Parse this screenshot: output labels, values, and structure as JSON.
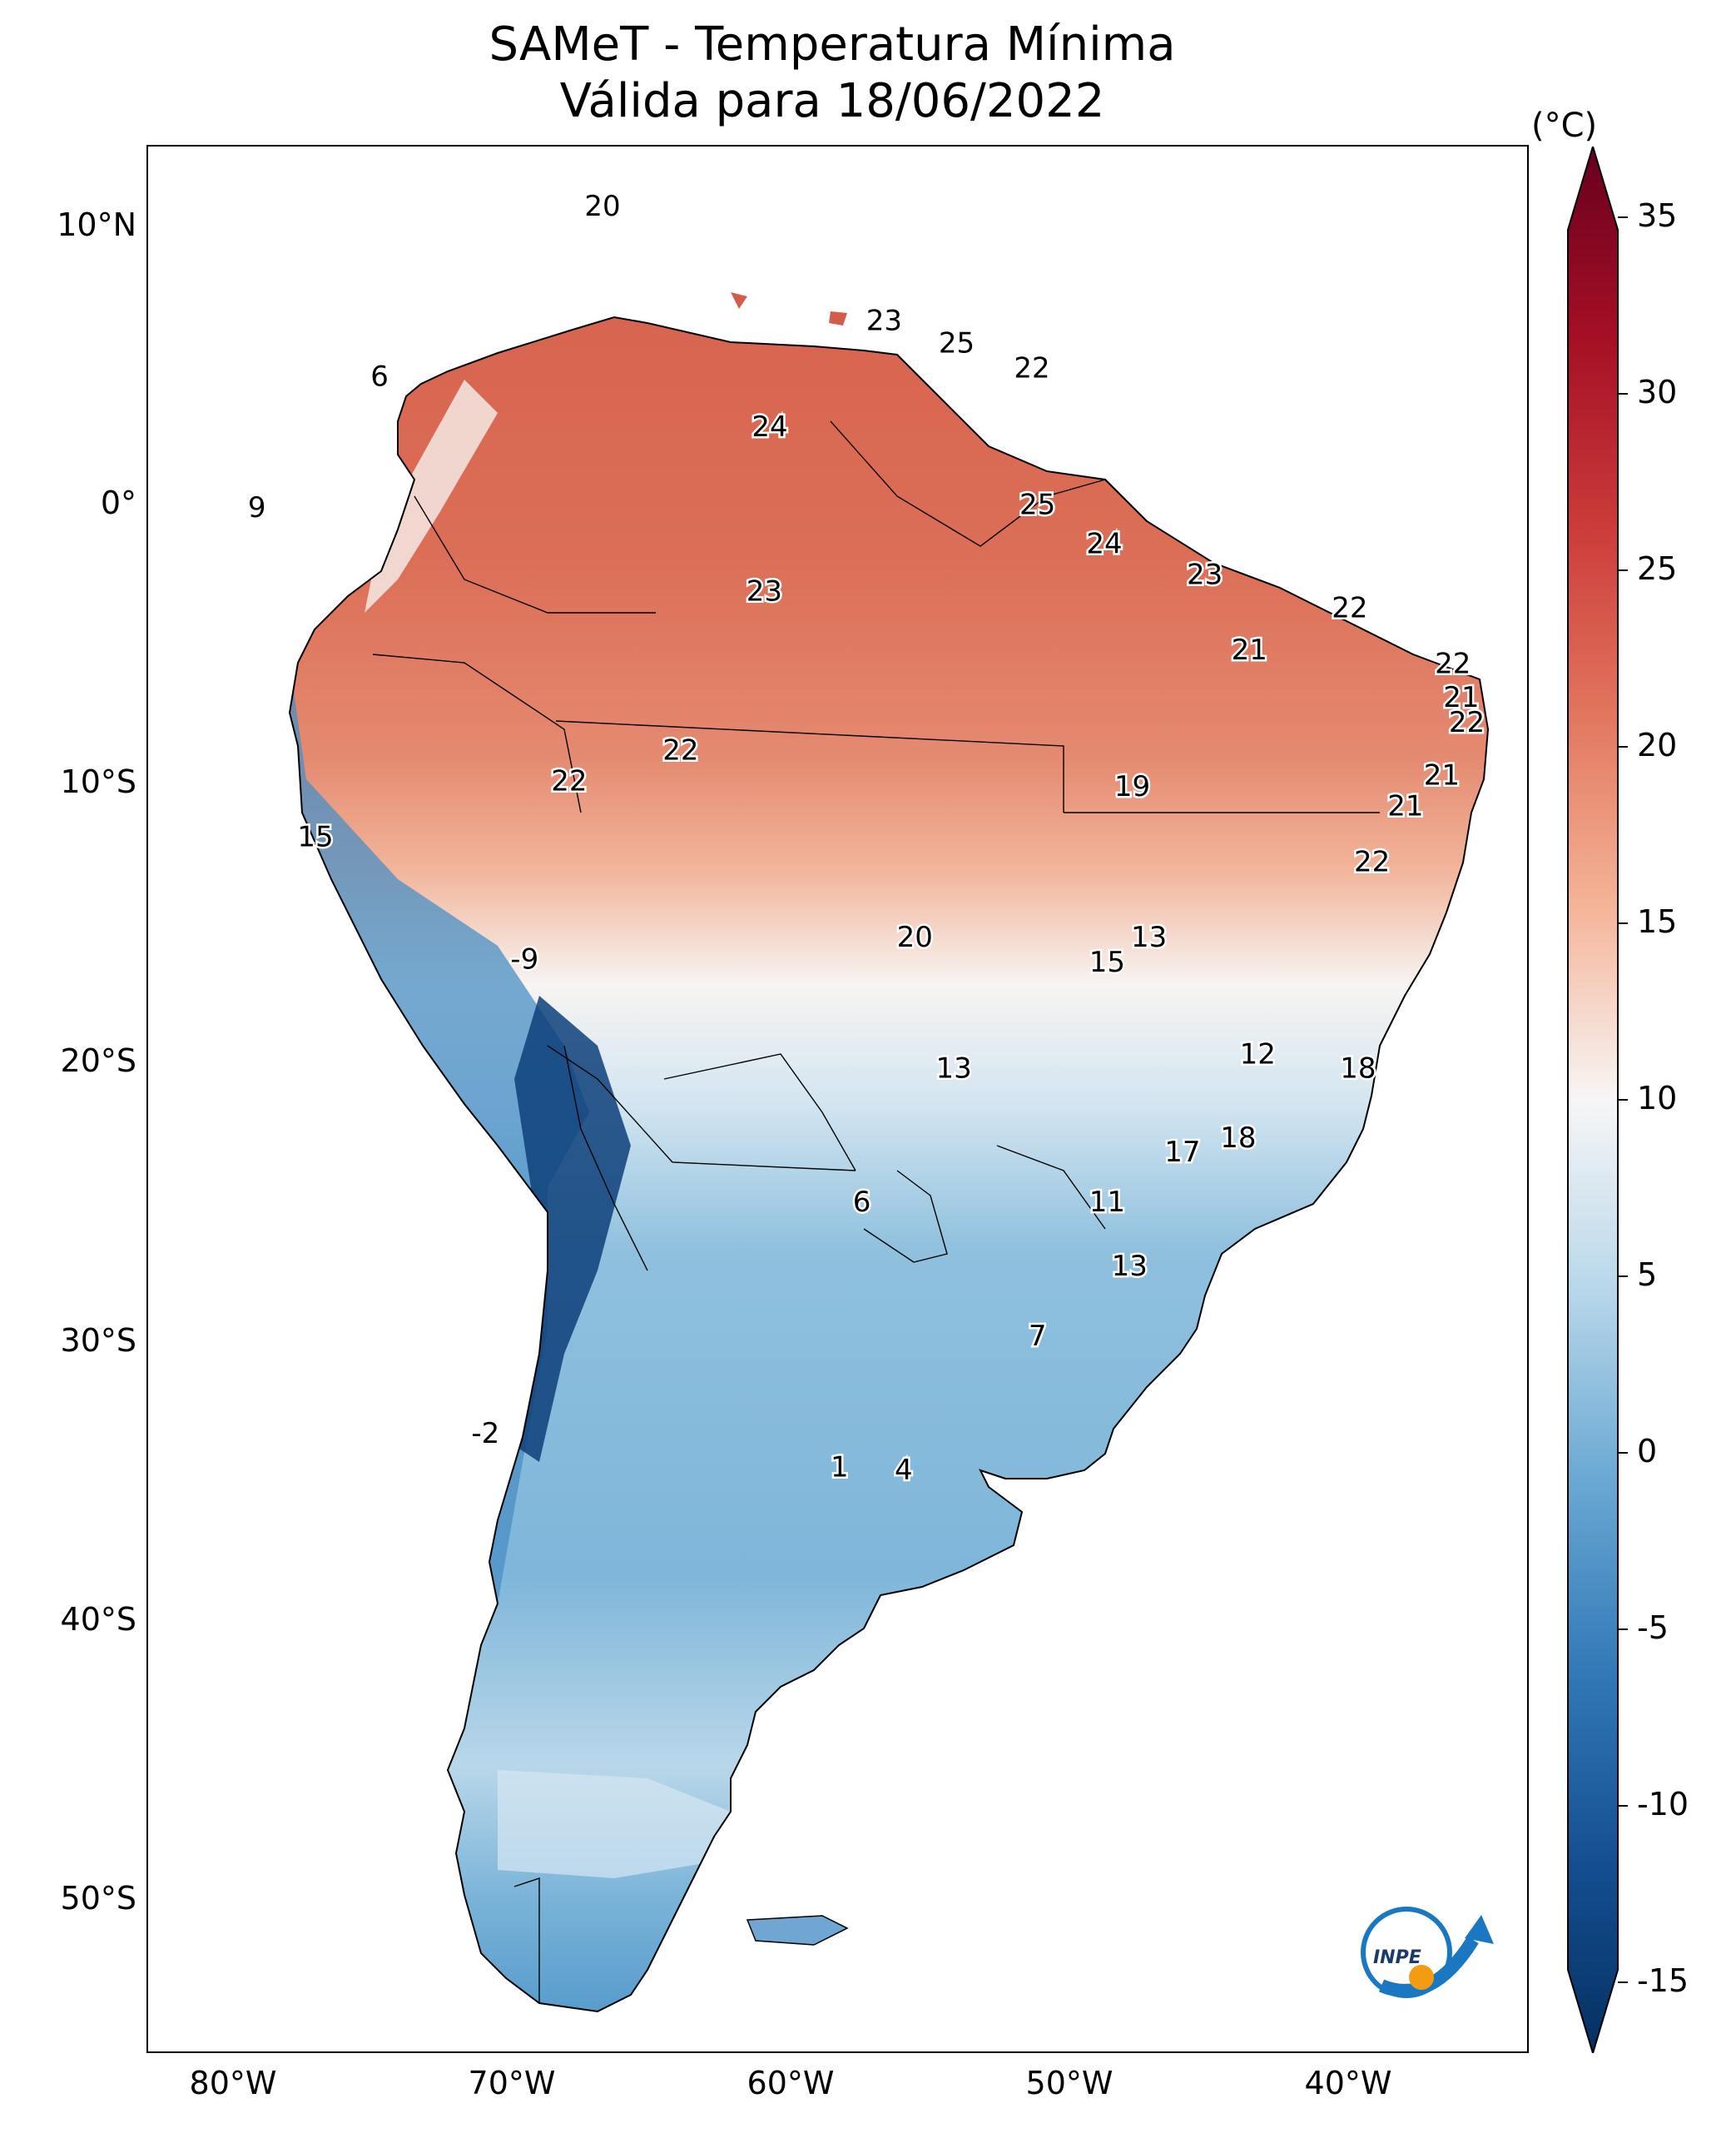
{
  "title": {
    "line1": "SAMeT - Temperatura Mínima",
    "line2": "Válida para 18/06/2022"
  },
  "axes": {
    "lat_labels": [
      "10°N",
      "0°",
      "10°S",
      "20°S",
      "30°S",
      "40°S",
      "50°S"
    ],
    "lon_labels": [
      "80°W",
      "70°W",
      "60°W",
      "50°W",
      "40°W"
    ]
  },
  "colorbar": {
    "unit": "(°C)",
    "ticks": [
      "35",
      "30",
      "25",
      "20",
      "15",
      "10",
      "5",
      "0",
      "-5",
      "-10",
      "-15"
    ],
    "min": -17,
    "max": 37
  },
  "logo": {
    "text": "INPE"
  },
  "station_labels": [
    {
      "v": "20",
      "lon": -66.8,
      "lat": 10.6
    },
    {
      "v": "6",
      "lon": -74.8,
      "lat": 4.5
    },
    {
      "v": "23",
      "lon": -56.7,
      "lat": 6.5
    },
    {
      "v": "25",
      "lon": -54.1,
      "lat": 5.7
    },
    {
      "v": "22",
      "lon": -51.4,
      "lat": 4.8
    },
    {
      "v": "24",
      "lon": -60.8,
      "lat": 2.7
    },
    {
      "v": "9",
      "lon": -79.2,
      "lat": -0.2
    },
    {
      "v": "25",
      "lon": -51.2,
      "lat": -0.1
    },
    {
      "v": "24",
      "lon": -48.8,
      "lat": -1.5
    },
    {
      "v": "23",
      "lon": -61.0,
      "lat": -3.2
    },
    {
      "v": "23",
      "lon": -45.2,
      "lat": -2.6
    },
    {
      "v": "22",
      "lon": -40.0,
      "lat": -3.8
    },
    {
      "v": "21",
      "lon": -43.6,
      "lat": -5.3
    },
    {
      "v": "22",
      "lon": -36.3,
      "lat": -5.8
    },
    {
      "v": "21",
      "lon": -36.0,
      "lat": -7.0
    },
    {
      "v": "22",
      "lon": -35.8,
      "lat": -7.9
    },
    {
      "v": "22",
      "lon": -64.0,
      "lat": -8.9
    },
    {
      "v": "22",
      "lon": -68.0,
      "lat": -10.0
    },
    {
      "v": "21",
      "lon": -36.7,
      "lat": -9.8
    },
    {
      "v": "19",
      "lon": -47.8,
      "lat": -10.2
    },
    {
      "v": "21",
      "lon": -38.0,
      "lat": -10.9
    },
    {
      "v": "15",
      "lon": -77.1,
      "lat": -12.0
    },
    {
      "v": "22",
      "lon": -39.2,
      "lat": -12.9
    },
    {
      "v": "13",
      "lon": -47.2,
      "lat": -15.6
    },
    {
      "v": "20",
      "lon": -55.6,
      "lat": -15.6
    },
    {
      "v": "-9",
      "lon": -69.6,
      "lat": -16.4
    },
    {
      "v": "15",
      "lon": -48.7,
      "lat": -16.5
    },
    {
      "v": "12",
      "lon": -43.3,
      "lat": -19.8
    },
    {
      "v": "13",
      "lon": -54.2,
      "lat": -20.3
    },
    {
      "v": "18",
      "lon": -39.7,
      "lat": -20.3
    },
    {
      "v": "18",
      "lon": -44.0,
      "lat": -22.8
    },
    {
      "v": "17",
      "lon": -46.0,
      "lat": -23.3
    },
    {
      "v": "6",
      "lon": -57.5,
      "lat": -25.1
    },
    {
      "v": "11",
      "lon": -48.7,
      "lat": -25.1
    },
    {
      "v": "13",
      "lon": -47.9,
      "lat": -27.4
    },
    {
      "v": "7",
      "lon": -51.2,
      "lat": -29.9
    },
    {
      "v": "-2",
      "lon": -71.0,
      "lat": -33.4
    },
    {
      "v": "1",
      "lon": -58.3,
      "lat": -34.6
    },
    {
      "v": "4",
      "lon": -56.0,
      "lat": -34.7
    }
  ]
}
